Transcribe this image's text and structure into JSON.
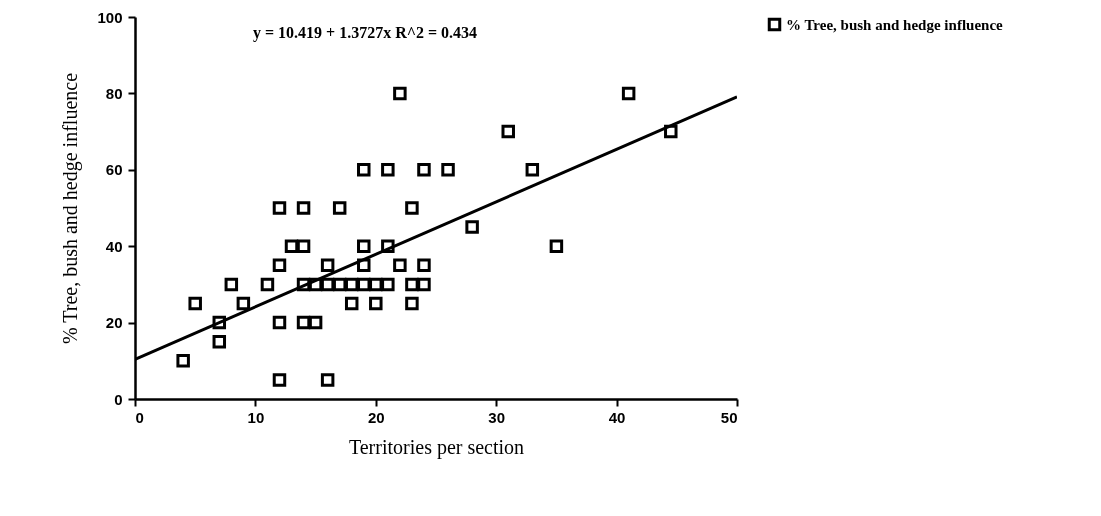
{
  "chart_data": {
    "type": "scatter",
    "xlabel": "Territories per section",
    "ylabel": "% Tree, bush and hedge influence",
    "annotations": [
      "y = 10.419 + 1.3727x    R^2 = 0.434"
    ],
    "x": [
      4,
      5,
      7,
      7,
      8,
      9,
      11,
      12,
      12,
      12,
      12,
      13,
      14,
      14,
      14,
      14,
      15,
      15,
      16,
      16,
      16,
      17,
      17,
      18,
      18,
      19,
      19,
      19,
      19,
      20,
      20,
      21,
      21,
      21,
      22,
      22,
      23,
      23,
      23,
      24,
      24,
      24,
      26,
      28,
      31,
      33,
      35,
      41,
      44.5
    ],
    "series": [
      {
        "name": "% Tree, bush and hedge influence",
        "color": "#000000",
        "marker": "square",
        "values": [
          10,
          25,
          20,
          15,
          30,
          25,
          30,
          50,
          35,
          20,
          5,
          40,
          40,
          50,
          30,
          20,
          20,
          30,
          35,
          30,
          5,
          50,
          30,
          30,
          25,
          60,
          40,
          35,
          30,
          30,
          25,
          60,
          40,
          30,
          80,
          35,
          50,
          30,
          25,
          60,
          35,
          30,
          60,
          45,
          70,
          60,
          40,
          80,
          70
        ]
      },
      {
        "type": "line",
        "color": "#000000",
        "marker": "none",
        "x": [
          0,
          50
        ],
        "values": [
          10.4,
          79.1
        ]
      }
    ],
    "xlim": [
      0,
      50
    ],
    "ylim": [
      0,
      100
    ],
    "xticks": [
      0,
      10,
      20,
      30,
      40,
      50
    ],
    "yticks": [
      0,
      20,
      40,
      60,
      80,
      100
    ],
    "grid": false,
    "legend": "right"
  }
}
